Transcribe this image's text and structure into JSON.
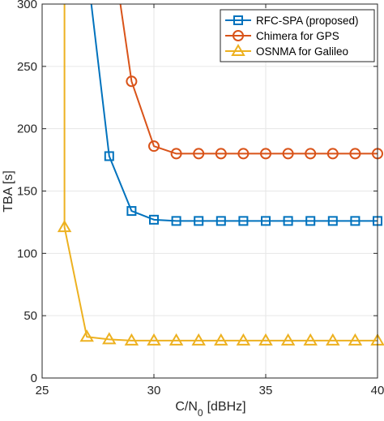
{
  "chart_data": {
    "type": "line",
    "xlabel": "C/N",
    "xlabel_sub": "0",
    "xlabel_unit": "[dBHz]",
    "ylabel": "TBA [s]",
    "xlim": [
      25,
      40
    ],
    "ylim": [
      0,
      300
    ],
    "xticks": [
      25,
      30,
      35,
      40
    ],
    "yticks": [
      0,
      50,
      100,
      150,
      200,
      250,
      300
    ],
    "grid": true,
    "legend_position": "top-right",
    "series": [
      {
        "name": "RFC-SPA (proposed)",
        "color": "#0072BD",
        "marker": "square",
        "x": [
          27.2,
          28,
          29,
          30,
          31,
          32,
          33,
          34,
          35,
          36,
          37,
          38,
          39,
          40
        ],
        "y": [
          300,
          178,
          134,
          127,
          126,
          126,
          126,
          126,
          126,
          126,
          126,
          126,
          126,
          126
        ],
        "markers_from_index": 1
      },
      {
        "name": "Chimera for GPS",
        "color": "#D95319",
        "marker": "circle",
        "x": [
          28.5,
          29,
          30,
          31,
          32,
          33,
          34,
          35,
          36,
          37,
          38,
          39,
          40
        ],
        "y": [
          300,
          238,
          186,
          180,
          180,
          180,
          180,
          180,
          180,
          180,
          180,
          180,
          180
        ],
        "markers_from_index": 1
      },
      {
        "name": "OSNMA for Galileo",
        "color": "#EDB120",
        "marker": "triangle",
        "x": [
          26,
          26,
          27,
          28,
          29,
          30,
          31,
          32,
          33,
          34,
          35,
          36,
          37,
          38,
          39,
          40
        ],
        "y": [
          300,
          121,
          33,
          31,
          30,
          30,
          30,
          30,
          30,
          30,
          30,
          30,
          30,
          30,
          30,
          30
        ],
        "markers_from_index": 1
      }
    ]
  }
}
